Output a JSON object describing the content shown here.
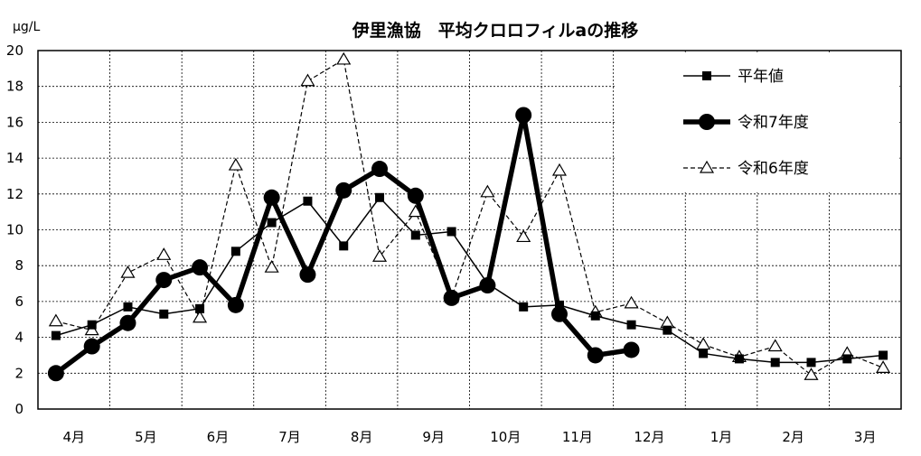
{
  "chart_data": {
    "type": "line",
    "title": "伊里漁協　平均クロロフィルaの推移",
    "unit_label": "μg/L",
    "ylim": [
      0,
      20
    ],
    "y_ticks": [
      0,
      2,
      4,
      6,
      8,
      10,
      12,
      14,
      16,
      18,
      20
    ],
    "month_labels": [
      "4月",
      "5月",
      "6月",
      "7月",
      "8月",
      "9月",
      "10月",
      "11月",
      "12月",
      "1月",
      "2月",
      "3月"
    ],
    "x_range": [
      0,
      24
    ],
    "grid": true,
    "legend_position": "top-right",
    "series": [
      {
        "name": "平年値",
        "style": "thin-solid-square",
        "color": "#000000",
        "x": [
          0.5,
          1.5,
          2.5,
          3.5,
          4.5,
          5.5,
          6.5,
          7.5,
          8.5,
          9.5,
          10.5,
          11.5,
          12.5,
          13.5,
          14.5,
          15.5,
          16.5,
          17.5,
          18.5,
          19.5,
          20.5,
          21.5,
          22.5,
          23.5
        ],
        "values": [
          4.1,
          4.7,
          5.7,
          5.3,
          5.6,
          8.8,
          10.4,
          11.6,
          9.1,
          11.8,
          9.7,
          9.9,
          7.0,
          5.7,
          5.8,
          5.2,
          4.7,
          4.4,
          3.1,
          2.8,
          2.6,
          2.6,
          2.8,
          3.0
        ]
      },
      {
        "name": "令和7年度",
        "style": "thick-solid-circle",
        "color": "#000000",
        "x": [
          0.5,
          1.5,
          2.5,
          3.5,
          4.5,
          5.5,
          6.5,
          7.5,
          8.5,
          9.5,
          10.5,
          11.5,
          12.5,
          13.5,
          14.5,
          15.5,
          16.5
        ],
        "values": [
          2.0,
          3.5,
          4.8,
          7.2,
          7.9,
          5.8,
          11.8,
          7.5,
          12.2,
          13.4,
          11.9,
          6.2,
          6.9,
          16.4,
          5.3,
          3.0,
          3.3
        ]
      },
      {
        "name": "令和6年度",
        "style": "dashed-open-triangle",
        "color": "#000000",
        "x": [
          0.5,
          1.5,
          2.5,
          3.5,
          4.5,
          5.5,
          6.5,
          7.5,
          8.5,
          9.5,
          10.5,
          11.5,
          12.5,
          13.5,
          14.5,
          15.5,
          16.5,
          17.5,
          18.5,
          19.5,
          20.5,
          21.5,
          22.5,
          23.5
        ],
        "values": [
          4.9,
          4.4,
          7.6,
          8.6,
          5.1,
          13.6,
          7.9,
          18.3,
          19.5,
          8.5,
          11.0,
          6.2,
          12.1,
          9.6,
          13.3,
          5.4,
          5.9,
          4.8,
          3.6,
          2.9,
          3.5,
          1.9,
          3.1,
          2.3
        ]
      }
    ]
  }
}
